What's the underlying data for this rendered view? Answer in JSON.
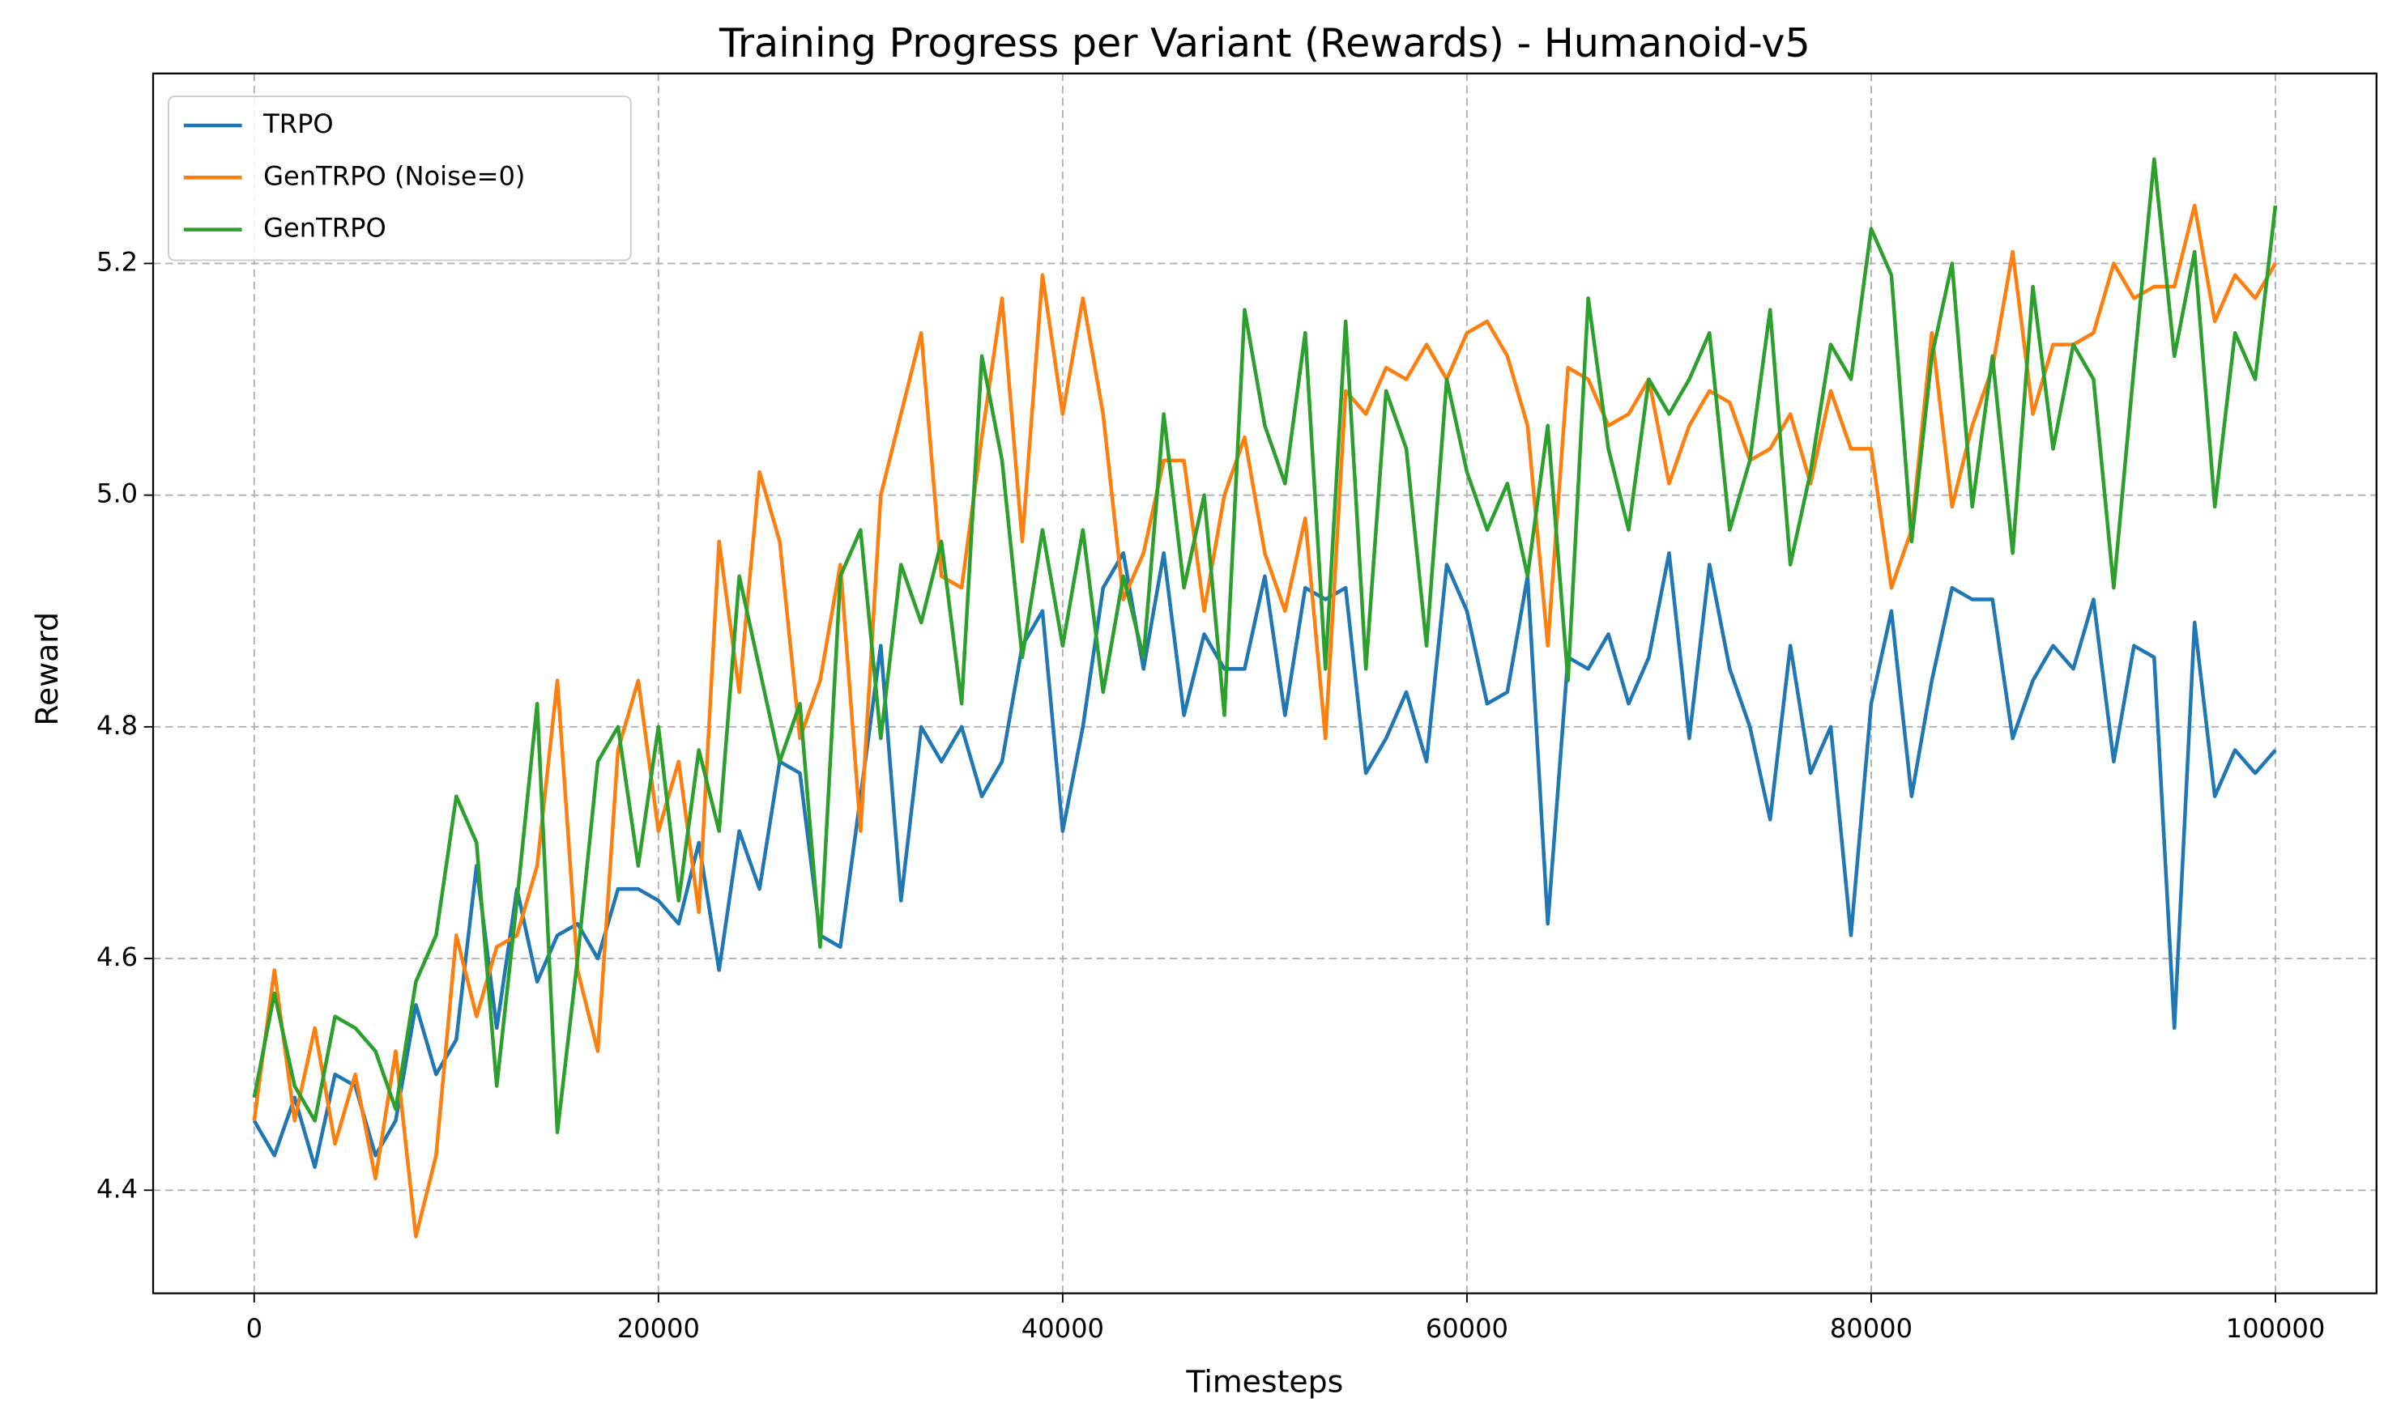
{
  "chart_data": {
    "type": "line",
    "title": "Training Progress per Variant (Rewards) - Humanoid-v5",
    "x_label": "Timesteps",
    "y_label": "Reward",
    "x": [
      0,
      1000,
      2000,
      3000,
      4000,
      5000,
      6000,
      7000,
      8000,
      9000,
      10000,
      11000,
      12000,
      13000,
      14000,
      15000,
      16000,
      17000,
      18000,
      19000,
      20000,
      21000,
      22000,
      23000,
      24000,
      25000,
      26000,
      27000,
      28000,
      29000,
      30000,
      31000,
      32000,
      33000,
      34000,
      35000,
      36000,
      37000,
      38000,
      39000,
      40000,
      41000,
      42000,
      43000,
      44000,
      45000,
      46000,
      47000,
      48000,
      49000,
      50000,
      51000,
      52000,
      53000,
      54000,
      55000,
      56000,
      57000,
      58000,
      59000,
      60000,
      61000,
      62000,
      63000,
      64000,
      65000,
      66000,
      67000,
      68000,
      69000,
      70000,
      71000,
      72000,
      73000,
      74000,
      75000,
      76000,
      77000,
      78000,
      79000,
      80000,
      81000,
      82000,
      83000,
      84000,
      85000,
      86000,
      87000,
      88000,
      89000,
      90000,
      91000,
      92000,
      93000,
      94000,
      95000,
      96000,
      97000,
      98000,
      99000,
      100000
    ],
    "series": [
      {
        "name": "TRPO",
        "color": "#1f77b4",
        "values": [
          4.46,
          4.43,
          4.48,
          4.42,
          4.5,
          4.49,
          4.43,
          4.46,
          4.56,
          4.5,
          4.53,
          4.68,
          4.54,
          4.66,
          4.58,
          4.62,
          4.63,
          4.6,
          4.66,
          4.66,
          4.65,
          4.63,
          4.7,
          4.59,
          4.71,
          4.66,
          4.77,
          4.76,
          4.62,
          4.61,
          4.74,
          4.87,
          4.65,
          4.8,
          4.77,
          4.8,
          4.74,
          4.77,
          4.87,
          4.9,
          4.71,
          4.8,
          4.92,
          4.95,
          4.85,
          4.95,
          4.81,
          4.88,
          4.85,
          4.85,
          4.93,
          4.81,
          4.92,
          4.91,
          4.92,
          4.76,
          4.79,
          4.83,
          4.77,
          4.94,
          4.9,
          4.82,
          4.83,
          4.93,
          4.63,
          4.86,
          4.85,
          4.88,
          4.82,
          4.86,
          4.95,
          4.79,
          4.94,
          4.85,
          4.8,
          4.72,
          4.87,
          4.76,
          4.8,
          4.62,
          4.82,
          4.9,
          4.74,
          4.84,
          4.92,
          4.91,
          4.91,
          4.79,
          4.84,
          4.87,
          4.85,
          4.91,
          4.77,
          4.87,
          4.86,
          4.54,
          4.89,
          4.74,
          4.78,
          4.76,
          4.78
        ]
      },
      {
        "name": "GenTRPO (Noise=0)",
        "color": "#ff7f0e",
        "values": [
          4.46,
          4.59,
          4.46,
          4.54,
          4.44,
          4.5,
          4.41,
          4.52,
          4.36,
          4.43,
          4.62,
          4.55,
          4.61,
          4.62,
          4.68,
          4.84,
          4.59,
          4.52,
          4.78,
          4.84,
          4.71,
          4.77,
          4.64,
          4.96,
          4.83,
          5.02,
          4.96,
          4.79,
          4.84,
          4.94,
          4.71,
          5.0,
          5.07,
          5.14,
          4.93,
          4.92,
          5.05,
          5.17,
          4.96,
          5.19,
          5.07,
          5.17,
          5.07,
          4.91,
          4.95,
          5.03,
          5.03,
          4.9,
          5.0,
          5.05,
          4.95,
          4.9,
          4.98,
          4.79,
          5.09,
          5.07,
          5.11,
          5.1,
          5.13,
          5.1,
          5.14,
          5.15,
          5.12,
          5.06,
          4.87,
          5.11,
          5.1,
          5.06,
          5.07,
          5.1,
          5.01,
          5.06,
          5.09,
          5.08,
          5.03,
          5.04,
          5.07,
          5.01,
          5.09,
          5.04,
          5.04,
          4.92,
          4.97,
          5.14,
          4.99,
          5.06,
          5.11,
          5.21,
          5.07,
          5.13,
          5.13,
          5.14,
          5.2,
          5.17,
          5.18,
          5.18,
          5.25,
          5.15,
          5.19,
          5.17,
          5.2
        ]
      },
      {
        "name": "GenTRPO",
        "color": "#2ca02c",
        "values": [
          4.48,
          4.57,
          4.49,
          4.46,
          4.55,
          4.54,
          4.52,
          4.47,
          4.58,
          4.62,
          4.74,
          4.7,
          4.49,
          4.65,
          4.82,
          4.45,
          4.6,
          4.77,
          4.8,
          4.68,
          4.8,
          4.65,
          4.78,
          4.71,
          4.93,
          4.85,
          4.77,
          4.82,
          4.61,
          4.93,
          4.97,
          4.79,
          4.94,
          4.89,
          4.96,
          4.82,
          5.12,
          5.03,
          4.86,
          4.97,
          4.87,
          4.97,
          4.83,
          4.93,
          4.86,
          5.07,
          4.92,
          5.0,
          4.81,
          5.16,
          5.06,
          5.01,
          5.14,
          4.85,
          5.15,
          4.85,
          5.09,
          5.04,
          4.87,
          5.1,
          5.02,
          4.97,
          5.01,
          4.93,
          5.06,
          4.84,
          5.17,
          5.04,
          4.97,
          5.1,
          5.07,
          5.1,
          5.14,
          4.97,
          5.03,
          5.16,
          4.94,
          5.02,
          5.13,
          5.1,
          5.23,
          5.19,
          4.96,
          5.12,
          5.2,
          4.99,
          5.12,
          4.95,
          5.18,
          5.04,
          5.13,
          5.1,
          4.92,
          5.11,
          5.29,
          5.12,
          5.21,
          4.99,
          5.14,
          5.1,
          5.25
        ]
      }
    ],
    "xlim": [
      -5000,
      105000
    ],
    "xticks": [
      0,
      20000,
      40000,
      60000,
      80000,
      100000
    ],
    "ylim": [
      4.311,
      5.364
    ],
    "yticks": [
      4.4,
      4.6,
      4.8,
      {
        "value": 5,
        "label": "5.0"
      },
      5.2
    ],
    "grid": true,
    "legend": "upper-left"
  }
}
